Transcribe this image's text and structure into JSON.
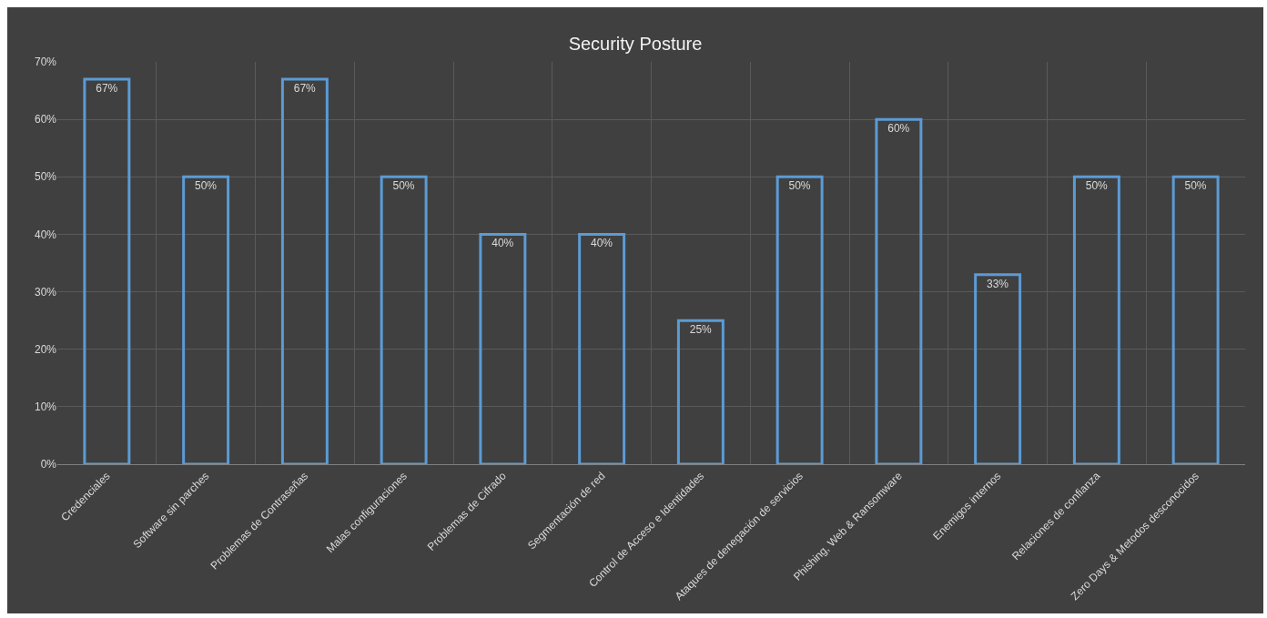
{
  "chart_data": {
    "type": "bar",
    "title": "Security Posture",
    "categories": [
      "Credenciales",
      "Software sin parches",
      "Problemas de Contraseñas",
      "Malas configuraciones",
      "Problemas de Cifrado",
      "Segmentación de red",
      "Control de Acceso e Identidades",
      "Ataques de denegación de servicios",
      "Phishing, Web & Ransomware",
      "Enemigos internos",
      "Relaciones de confianza",
      "Zero Days & Metodos desconocidos"
    ],
    "values": [
      67,
      50,
      67,
      50,
      40,
      40,
      25,
      50,
      60,
      33,
      50,
      50
    ],
    "value_labels": [
      "67%",
      "50%",
      "67%",
      "50%",
      "40%",
      "40%",
      "25%",
      "50%",
      "60%",
      "33%",
      "50%",
      "50%"
    ],
    "color": "#5b9bd5",
    "ylim": [
      0,
      70
    ],
    "yticks": [
      {
        "value": 0,
        "label": "0%"
      },
      {
        "value": 10,
        "label": "10%"
      },
      {
        "value": 20,
        "label": "20%"
      },
      {
        "value": 30,
        "label": "30%"
      },
      {
        "value": 40,
        "label": "40%"
      },
      {
        "value": 50,
        "label": "50%"
      },
      {
        "value": 60,
        "label": "60%"
      },
      {
        "value": 70,
        "label": "70%"
      }
    ],
    "grid": true
  }
}
